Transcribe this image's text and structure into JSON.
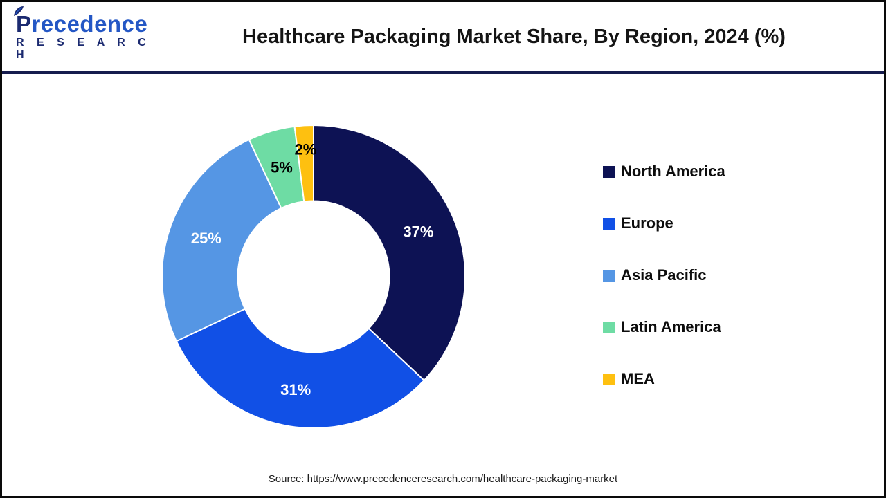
{
  "header": {
    "logo": {
      "name": "Precedence",
      "subtitle": "R E S E A R C H"
    },
    "title": "Healthcare Packaging Market Share, By Region, 2024 (%)"
  },
  "chart_data": {
    "type": "pie",
    "variant": "donut",
    "title": "Healthcare Packaging Market Share, By Region, 2024 (%)",
    "categories": [
      "North America",
      "Europe",
      "Asia Pacific",
      "Latin America",
      "MEA"
    ],
    "values": [
      37,
      31,
      25,
      5,
      2
    ],
    "labels": [
      "37%",
      "31%",
      "25%",
      "5%",
      "2%"
    ],
    "colors": [
      "#0d1254",
      "#1150e6",
      "#5596e4",
      "#6edca4",
      "#fec010"
    ],
    "label_colors": [
      "#ffffff",
      "#ffffff",
      "#ffffff",
      "#000000",
      "#000000"
    ],
    "start_angle_deg": 0,
    "direction": "clockwise",
    "inner_radius_ratio": 0.5,
    "separator_color": "#ffffff",
    "legend_position": "right"
  },
  "footer": {
    "source": "Source: https://www.precedenceresearch.com/healthcare-packaging-market"
  },
  "colors": {
    "frame": "#0a0a0a",
    "divider": "#161c4e",
    "logo_navy": "#1b2a70",
    "logo_blue": "#2457c5",
    "title_text": "#141414"
  }
}
